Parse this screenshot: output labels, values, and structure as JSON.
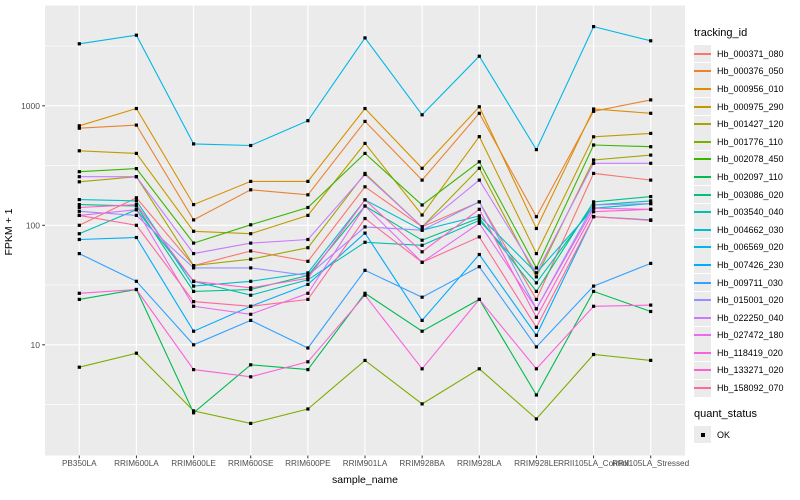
{
  "chart_data": {
    "type": "line",
    "title": "",
    "xlabel": "sample_name",
    "ylabel": "FPKM + 1",
    "y_scale": "log10",
    "y_ticks": [
      10,
      100,
      1000
    ],
    "y_minor_ticks": [
      3.16,
      31.6,
      316,
      3160
    ],
    "ylim_approx": [
      1.5,
      6800
    ],
    "grid": "major-and-minor-white-on-gray",
    "panel_bg": "#EBEBEB",
    "grid_color": "#FFFFFF",
    "axis_text_color": "#4D4D4D",
    "point_color": "#000000",
    "legend_position": "right",
    "legend_title": "tracking_id",
    "secondary_legend": {
      "title": "quant_status",
      "entries": [
        "OK"
      ]
    },
    "categories": [
      "PB350LA",
      "RRIM600LA",
      "RRIM600LE",
      "RRIM600SE",
      "RRIM600PE",
      "RRIM901LA",
      "RRIM928BA",
      "RRIM928LA",
      "RRIM928LE",
      "RRII105LA_Control",
      "RRII105LA_Stressed"
    ],
    "series": [
      {
        "name": "Hb_000371_080",
        "color": "#F8766D",
        "values": [
          100,
          170,
          46,
          61,
          50,
          210,
          97,
          157,
          24,
          272,
          239
        ]
      },
      {
        "name": "Hb_000376_050",
        "color": "#EA8331",
        "values": [
          650,
          690,
          111,
          198,
          180,
          740,
          239,
          865,
          118,
          900,
          1120
        ]
      },
      {
        "name": "Hb_000956_010",
        "color": "#D89000",
        "values": [
          680,
          950,
          149,
          233,
          233,
          950,
          300,
          980,
          94,
          940,
          865
        ]
      },
      {
        "name": "Hb_000975_290",
        "color": "#C09B00",
        "values": [
          420,
          400,
          89,
          85,
          121,
          485,
          122,
          552,
          58,
          550,
          588
        ]
      },
      {
        "name": "Hb_001427_120",
        "color": "#A3A500",
        "values": [
          231,
          255,
          46,
          52,
          65,
          272,
          97,
          300,
          37,
          352,
          387
        ]
      },
      {
        "name": "Hb_001776_110",
        "color": "#7CAE00",
        "values": [
          6.5,
          8.5,
          2.8,
          2.2,
          2.9,
          7.4,
          3.2,
          6.3,
          2.4,
          8.3,
          7.4
        ]
      },
      {
        "name": "Hb_002078_450",
        "color": "#39B600",
        "values": [
          281,
          298,
          71,
          101,
          141,
          400,
          148,
          340,
          44,
          470,
          455
        ]
      },
      {
        "name": "Hb_002097_110",
        "color": "#00BB4E",
        "values": [
          24,
          29,
          2.7,
          6.8,
          6.2,
          27,
          13,
          24,
          3.8,
          28,
          19
        ]
      },
      {
        "name": "Hb_003086_020",
        "color": "#00C087",
        "values": [
          149,
          145,
          28,
          29,
          38,
          145,
          75,
          115,
          28,
          157,
          174
        ]
      },
      {
        "name": "Hb_003540_040",
        "color": "#00C0B4",
        "values": [
          85,
          135,
          34,
          26,
          35,
          72,
          68,
          110,
          33,
          148,
          160
        ]
      },
      {
        "name": "Hb_004662_030",
        "color": "#00BDD0",
        "values": [
          164,
          160,
          31,
          34,
          40,
          163,
          91,
          120,
          40,
          139,
          152
        ]
      },
      {
        "name": "Hb_006569_020",
        "color": "#00B8E5",
        "values": [
          3300,
          3900,
          480,
          465,
          750,
          3700,
          840,
          2600,
          430,
          4600,
          3500
        ]
      },
      {
        "name": "Hb_007426_230",
        "color": "#00ACFC",
        "values": [
          76,
          79,
          13,
          21,
          32,
          86,
          16,
          57,
          12,
          118,
          111
        ]
      },
      {
        "name": "Hb_009711_030",
        "color": "#35A2FF",
        "values": [
          58,
          34,
          10,
          16,
          9.4,
          42,
          25,
          45,
          9.6,
          31,
          48
        ]
      },
      {
        "name": "Hb_015001_020",
        "color": "#9590FF",
        "values": [
          131,
          121,
          44,
          44,
          38,
          97,
          91,
          157,
          20,
          148,
          152
        ]
      },
      {
        "name": "Hb_022250_040",
        "color": "#C77CFF",
        "values": [
          255,
          255,
          58,
          71,
          76,
          266,
          97,
          239,
          40,
          330,
          330
        ]
      },
      {
        "name": "Hb_027472_180",
        "color": "#E76BF3",
        "values": [
          121,
          135,
          21,
          18,
          27,
          145,
          49,
          104,
          20,
          139,
          136
        ]
      },
      {
        "name": "Hb_118419_020",
        "color": "#FA62DB",
        "values": [
          27,
          29,
          6.2,
          5.4,
          7.2,
          26,
          6.3,
          24,
          6.3,
          21,
          21.5
        ]
      },
      {
        "name": "Hb_133271_020",
        "color": "#FF61C9",
        "values": [
          141,
          149,
          34,
          30,
          36,
          163,
          60,
          136,
          17,
          130,
          136
        ]
      },
      {
        "name": "Hb_158092_070",
        "color": "#FF6A98",
        "values": [
          121,
          100,
          23,
          21,
          24,
          114,
          49,
          80,
          14,
          118,
          110
        ]
      }
    ]
  }
}
